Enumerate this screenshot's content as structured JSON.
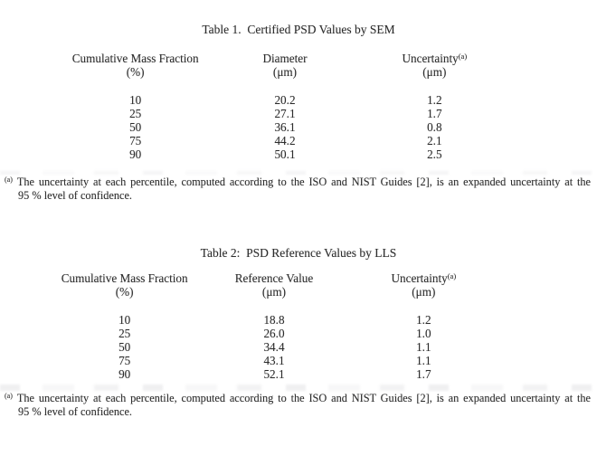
{
  "document": {
    "background": "#ffffff",
    "text_color": "#2d2d2d"
  },
  "tables": [
    {
      "title": "Table 1.  Certified PSD Values by SEM",
      "columns": [
        {
          "label": "Cumulative Mass Fraction",
          "unit": "(%)"
        },
        {
          "label": "Diameter",
          "unit": "(μm)"
        },
        {
          "label": "Uncertainty",
          "sup": "(a)",
          "unit": "(μm)"
        }
      ],
      "rows": [
        [
          "10",
          "20.2",
          "1.2"
        ],
        [
          "25",
          "27.1",
          "1.7"
        ],
        [
          "50",
          "36.1",
          "0.8"
        ],
        [
          "75",
          "44.2",
          "2.1"
        ],
        [
          "90",
          "50.1",
          "2.5"
        ]
      ],
      "footnote": {
        "marker": "(a)",
        "line1": "The uncertainty at each percentile, computed according to the ISO and NIST Guides [2], is an expanded uncertainty at the",
        "line2": "95 % level of confidence."
      }
    },
    {
      "title": "Table 2:  PSD Reference Values by LLS",
      "columns": [
        {
          "label": "Cumulative Mass Fraction",
          "unit": "(%)"
        },
        {
          "label": "Reference Value",
          "unit": "(μm)"
        },
        {
          "label": "Uncertainty",
          "sup": "(a)",
          "unit": "(μm)"
        }
      ],
      "rows": [
        [
          "10",
          "18.8",
          "1.2"
        ],
        [
          "25",
          "26.0",
          "1.0"
        ],
        [
          "50",
          "34.4",
          "1.1"
        ],
        [
          "75",
          "43.1",
          "1.1"
        ],
        [
          "90",
          "52.1",
          "1.7"
        ]
      ],
      "footnote": {
        "marker": "(a)",
        "line1": "The uncertainty at each percentile, computed according to the ISO and NIST Guides [2], is an expanded uncertainty at the",
        "line2": "95 % level of confidence."
      }
    }
  ]
}
